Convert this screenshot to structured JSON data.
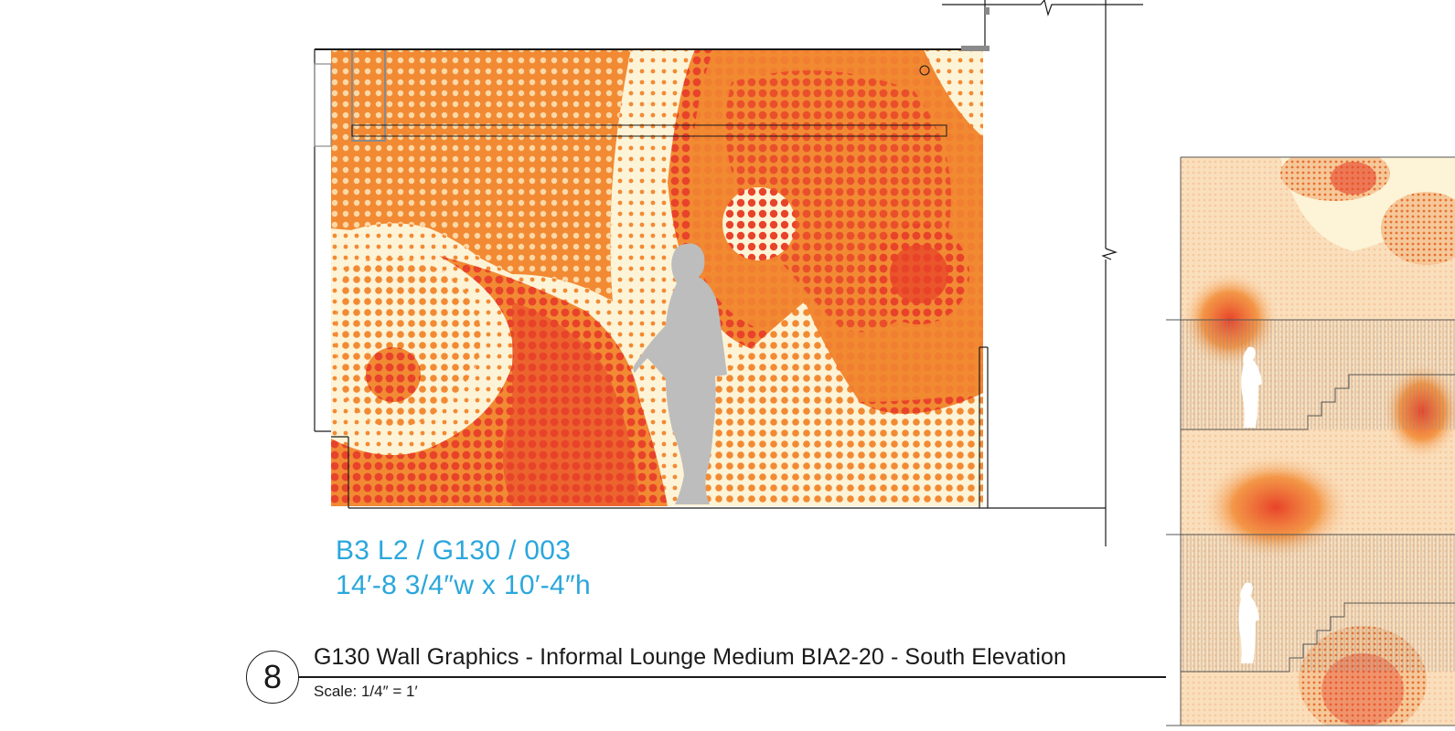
{
  "spec": {
    "id": "B3 L2 / G130 / 003",
    "dimensions": "14′-8 3/4″w x 10′-4″h"
  },
  "title_block": {
    "detail_number": "8",
    "title": "G130 Wall Graphics - Informal Lounge Medium BIA2-20 - South Elevation",
    "scale": "Scale: 1/4″ = 1′"
  },
  "colors": {
    "cream": "#fdf3d6",
    "orange": "#f28a33",
    "red_orange": "#e8432a",
    "figure_gray": "#bdbdbd",
    "accent_blue": "#2aa7dc",
    "line": "#1a1a1a"
  }
}
